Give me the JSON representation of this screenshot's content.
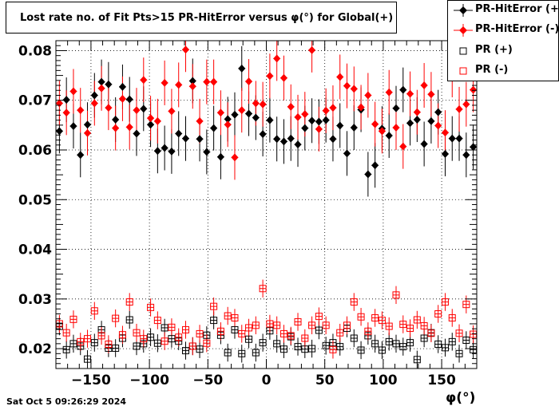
{
  "title": "Lost rate no. of Fit Pts>15 PR-HitError versus φ(°) for Global(+)",
  "timestamp": "Sat Oct  5 09:26:29 2024",
  "chart_data": {
    "type": "scatter",
    "title": "Lost rate no. of Fit Pts>15 PR-HitError versus φ(°) for Global(+)",
    "xlabel": "φ(°)",
    "ylabel": "",
    "xlim": [
      -180,
      180
    ],
    "ylim": [
      0.016,
      0.082
    ],
    "xticks": [
      -150,
      -100,
      -50,
      0,
      50,
      100,
      150
    ],
    "yticks": [
      0.02,
      0.03,
      0.04,
      0.05,
      0.06,
      0.07,
      0.08
    ],
    "ytick_labels": [
      "0.02",
      "0.03",
      "0.04",
      "0.05",
      "0.06",
      "0.07",
      "0.08"
    ],
    "grid": true,
    "legend_position": "top-right",
    "x": [
      -177,
      -171,
      -165,
      -159,
      -153,
      -147,
      -141,
      -135,
      -129,
      -123,
      -117,
      -111,
      -105,
      -99,
      -93,
      -87,
      -81,
      -75,
      -69,
      -63,
      -57,
      -51,
      -45,
      -39,
      -33,
      -27,
      -21,
      -15,
      -9,
      -3,
      3,
      9,
      15,
      21,
      27,
      33,
      39,
      45,
      51,
      57,
      63,
      69,
      75,
      81,
      87,
      93,
      99,
      105,
      111,
      117,
      123,
      129,
      135,
      141,
      147,
      153,
      159,
      165,
      171,
      177
    ],
    "series": [
      {
        "name": "PR-HitError (+)",
        "color": "#000000",
        "marker": "filled-diamond",
        "yerr": 0.0045,
        "values": [
          0.0638,
          0.0701,
          0.0648,
          0.059,
          0.0651,
          0.071,
          0.0737,
          0.0732,
          0.0661,
          0.0727,
          0.0702,
          0.0633,
          0.0683,
          0.0651,
          0.0598,
          0.0604,
          0.0597,
          0.0633,
          0.0623,
          0.0739,
          0.0622,
          0.0596,
          0.0644,
          0.0586,
          0.0662,
          0.0671,
          0.0764,
          0.0673,
          0.0665,
          0.0632,
          0.066,
          0.0622,
          0.0617,
          0.0623,
          0.0611,
          0.0644,
          0.0659,
          0.0657,
          0.066,
          0.0622,
          0.0649,
          0.0593,
          0.0645,
          0.0681,
          0.0551,
          0.0569,
          0.0643,
          0.0629,
          0.0684,
          0.0721,
          0.0654,
          0.0661,
          0.0612,
          0.0658,
          0.0676,
          0.0592,
          0.0623,
          0.0623,
          0.059,
          0.0606
        ]
      },
      {
        "name": "PR-HitError (-)",
        "color": "#ff0000",
        "marker": "filled-diamond",
        "yerr": 0.0045,
        "values": [
          0.0694,
          0.0675,
          0.0718,
          0.068,
          0.0634,
          0.0694,
          0.0724,
          0.0685,
          0.0644,
          0.0703,
          0.0646,
          0.068,
          0.0741,
          0.0664,
          0.0658,
          0.0735,
          0.0678,
          0.0731,
          0.0802,
          0.0728,
          0.0658,
          0.0737,
          0.0737,
          0.0675,
          0.0651,
          0.0585,
          0.068,
          0.0738,
          0.0694,
          0.0692,
          0.0749,
          0.0784,
          0.0745,
          0.0687,
          0.0666,
          0.0672,
          0.0801,
          0.0642,
          0.0679,
          0.0685,
          0.0747,
          0.0729,
          0.0723,
          0.0686,
          0.071,
          0.0652,
          0.0638,
          0.0716,
          0.0645,
          0.0607,
          0.0713,
          0.0676,
          0.073,
          0.0712,
          0.0649,
          0.0635,
          0.0751,
          0.0682,
          0.0692,
          0.0721
        ]
      },
      {
        "name": "PR (+)",
        "color": "#000000",
        "marker": "open-square",
        "yerr": 0.0018,
        "values": [
          0.0245,
          0.0198,
          0.021,
          0.0205,
          0.0179,
          0.0212,
          0.0238,
          0.0201,
          0.0201,
          0.0221,
          0.0258,
          0.0205,
          0.021,
          0.0223,
          0.0211,
          0.0242,
          0.022,
          0.0215,
          0.0196,
          0.0205,
          0.0199,
          0.0227,
          0.0257,
          0.0227,
          0.0192,
          0.0238,
          0.019,
          0.0219,
          0.0192,
          0.0212,
          0.0236,
          0.021,
          0.0199,
          0.0224,
          0.0204,
          0.0199,
          0.02,
          0.0237,
          0.0206,
          0.0212,
          0.0204,
          0.0241,
          0.0221,
          0.0197,
          0.0226,
          0.021,
          0.0197,
          0.0214,
          0.021,
          0.0204,
          0.0212,
          0.0178,
          0.0221,
          0.0232,
          0.0209,
          0.0202,
          0.0214,
          0.019,
          0.0217,
          0.0198
        ]
      },
      {
        "name": "PR (-)",
        "color": "#ff0000",
        "marker": "open-square",
        "yerr": 0.0018,
        "values": [
          0.025,
          0.0232,
          0.0259,
          0.0214,
          0.022,
          0.0276,
          0.0226,
          0.0209,
          0.0261,
          0.0228,
          0.0294,
          0.0232,
          0.022,
          0.0283,
          0.0257,
          0.0215,
          0.0243,
          0.0223,
          0.0238,
          0.0205,
          0.023,
          0.0211,
          0.0285,
          0.0235,
          0.0266,
          0.0262,
          0.023,
          0.0242,
          0.0247,
          0.0321,
          0.025,
          0.0247,
          0.023,
          0.0226,
          0.0254,
          0.0221,
          0.0247,
          0.0265,
          0.0247,
          0.0198,
          0.0232,
          0.0247,
          0.0294,
          0.0264,
          0.0235,
          0.0262,
          0.0257,
          0.0245,
          0.0308,
          0.0249,
          0.0241,
          0.0258,
          0.0246,
          0.0231,
          0.027,
          0.0294,
          0.0262,
          0.0231,
          0.0289,
          0.0229
        ]
      }
    ]
  }
}
